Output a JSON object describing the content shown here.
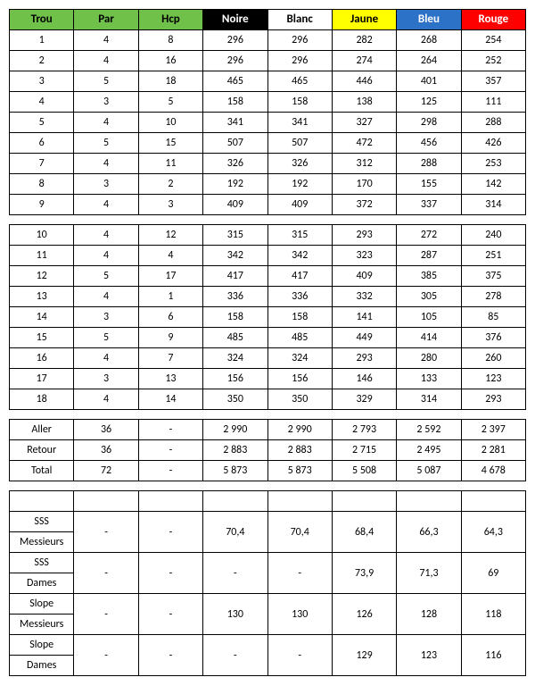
{
  "headers": {
    "trou": "Trou",
    "par": "Par",
    "hcp": "Hcp",
    "noire": "Noire",
    "blanc": "Blanc",
    "jaune": "Jaune",
    "bleu": "Bleu",
    "rouge": "Rouge"
  },
  "front": [
    {
      "t": "1",
      "p": "4",
      "h": "8",
      "n": "296",
      "b": "296",
      "j": "282",
      "bl": "268",
      "r": "254"
    },
    {
      "t": "2",
      "p": "4",
      "h": "16",
      "n": "296",
      "b": "296",
      "j": "274",
      "bl": "264",
      "r": "252"
    },
    {
      "t": "3",
      "p": "5",
      "h": "18",
      "n": "465",
      "b": "465",
      "j": "446",
      "bl": "401",
      "r": "357"
    },
    {
      "t": "4",
      "p": "3",
      "h": "5",
      "n": "158",
      "b": "158",
      "j": "138",
      "bl": "125",
      "r": "111"
    },
    {
      "t": "5",
      "p": "4",
      "h": "10",
      "n": "341",
      "b": "341",
      "j": "327",
      "bl": "298",
      "r": "288"
    },
    {
      "t": "6",
      "p": "5",
      "h": "15",
      "n": "507",
      "b": "507",
      "j": "472",
      "bl": "456",
      "r": "426"
    },
    {
      "t": "7",
      "p": "4",
      "h": "11",
      "n": "326",
      "b": "326",
      "j": "312",
      "bl": "288",
      "r": "253"
    },
    {
      "t": "8",
      "p": "3",
      "h": "2",
      "n": "192",
      "b": "192",
      "j": "170",
      "bl": "155",
      "r": "142"
    },
    {
      "t": "9",
      "p": "4",
      "h": "3",
      "n": "409",
      "b": "409",
      "j": "372",
      "bl": "337",
      "r": "314"
    }
  ],
  "back": [
    {
      "t": "10",
      "p": "4",
      "h": "12",
      "n": "315",
      "b": "315",
      "j": "293",
      "bl": "272",
      "r": "240"
    },
    {
      "t": "11",
      "p": "4",
      "h": "4",
      "n": "342",
      "b": "342",
      "j": "323",
      "bl": "287",
      "r": "251"
    },
    {
      "t": "12",
      "p": "5",
      "h": "17",
      "n": "417",
      "b": "417",
      "j": "409",
      "bl": "385",
      "r": "375"
    },
    {
      "t": "13",
      "p": "4",
      "h": "1",
      "n": "336",
      "b": "336",
      "j": "332",
      "bl": "305",
      "r": "278"
    },
    {
      "t": "14",
      "p": "3",
      "h": "6",
      "n": "158",
      "b": "158",
      "j": "141",
      "bl": "105",
      "r": "85"
    },
    {
      "t": "15",
      "p": "5",
      "h": "9",
      "n": "485",
      "b": "485",
      "j": "449",
      "bl": "414",
      "r": "376"
    },
    {
      "t": "16",
      "p": "4",
      "h": "7",
      "n": "324",
      "b": "324",
      "j": "293",
      "bl": "280",
      "r": "260"
    },
    {
      "t": "17",
      "p": "3",
      "h": "13",
      "n": "156",
      "b": "156",
      "j": "146",
      "bl": "133",
      "r": "123"
    },
    {
      "t": "18",
      "p": "4",
      "h": "14",
      "n": "350",
      "b": "350",
      "j": "329",
      "bl": "314",
      "r": "293"
    }
  ],
  "totals": [
    {
      "l": "Aller",
      "p": "36",
      "h": "-",
      "n": "2 990",
      "b": "2 990",
      "j": "2 793",
      "bl": "2 592",
      "r": "2 397"
    },
    {
      "l": "Retour",
      "p": "36",
      "h": "-",
      "n": "2 883",
      "b": "2 883",
      "j": "2 715",
      "bl": "2 495",
      "r": "2 281"
    },
    {
      "l": "Total",
      "p": "72",
      "h": "-",
      "n": "5 873",
      "b": "5 873",
      "j": "5 508",
      "bl": "5 087",
      "r": "4 678"
    }
  ],
  "ratings": {
    "sssM": {
      "l1": "SSS",
      "l2": "Messieurs",
      "n": "70,4",
      "b": "70,4",
      "j": "68,4",
      "bl": "66,3",
      "r": "64,3"
    },
    "sssD": {
      "l1": "SSS",
      "l2": "Dames",
      "n": "-",
      "b": "-",
      "j": "73,9",
      "bl": "71,3",
      "r": "69"
    },
    "slopeM": {
      "l1": "Slope",
      "l2": "Messieurs",
      "n": "130",
      "b": "130",
      "j": "126",
      "bl": "128",
      "r": "118"
    },
    "slopeD": {
      "l1": "Slope",
      "l2": "Dames",
      "n": "-",
      "b": "-",
      "j": "129",
      "bl": "123",
      "r": "116"
    }
  },
  "dash": "-"
}
